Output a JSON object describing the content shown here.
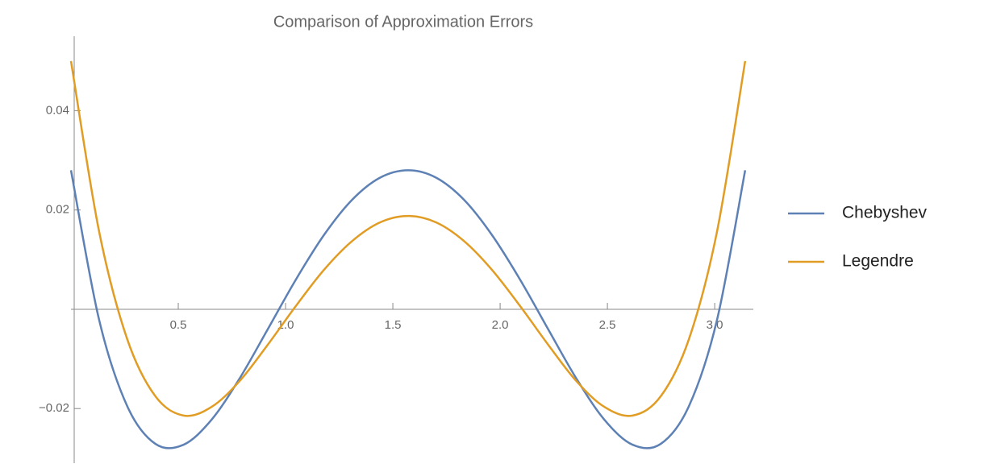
{
  "chart_data": {
    "type": "line",
    "title": "Comparison of Approximation Errors",
    "x": [
      0,
      0.131,
      0.262,
      0.393,
      0.524,
      0.654,
      0.785,
      0.916,
      1.047,
      1.178,
      1.309,
      1.44,
      1.571,
      1.702,
      1.833,
      1.963,
      2.094,
      2.225,
      2.356,
      2.487,
      2.618,
      2.749,
      2.88,
      3.011,
      3.142
    ],
    "series": [
      {
        "name": "Chebyshev",
        "color": "#5e81b5",
        "values": [
          0.028,
          -0.0021,
          -0.0195,
          -0.0271,
          -0.0273,
          -0.0223,
          -0.014,
          -0.0041,
          0.0059,
          0.0149,
          0.022,
          0.0265,
          0.028,
          0.0265,
          0.022,
          0.0149,
          0.0059,
          -0.0041,
          -0.014,
          -0.0223,
          -0.0273,
          -0.0271,
          -0.0195,
          -0.0021,
          0.028
        ]
      },
      {
        "name": "Legendre",
        "color": "#e19c24",
        "values": [
          0.05,
          0.0157,
          -0.006,
          -0.0175,
          -0.0214,
          -0.0197,
          -0.0145,
          -0.0072,
          0.0006,
          0.0079,
          0.0137,
          0.0175,
          0.0188,
          0.0175,
          0.0137,
          0.0079,
          0.0006,
          -0.0072,
          -0.0145,
          -0.0197,
          -0.0214,
          -0.0175,
          -0.006,
          0.0157,
          0.05
        ]
      }
    ],
    "xlim": [
      0,
      3.18
    ],
    "ylim": [
      -0.031,
      0.055
    ],
    "xticks": [
      0.5,
      {
        "value": 1.0,
        "label": "1.0"
      },
      1.5,
      {
        "value": 2.0,
        "label": "2.0"
      },
      2.5,
      {
        "value": 3.0,
        "label": "3.0"
      }
    ],
    "yticks": [
      {
        "value": -0.02,
        "label": "−0.02"
      },
      0.02,
      0.04
    ],
    "legend": "right"
  }
}
